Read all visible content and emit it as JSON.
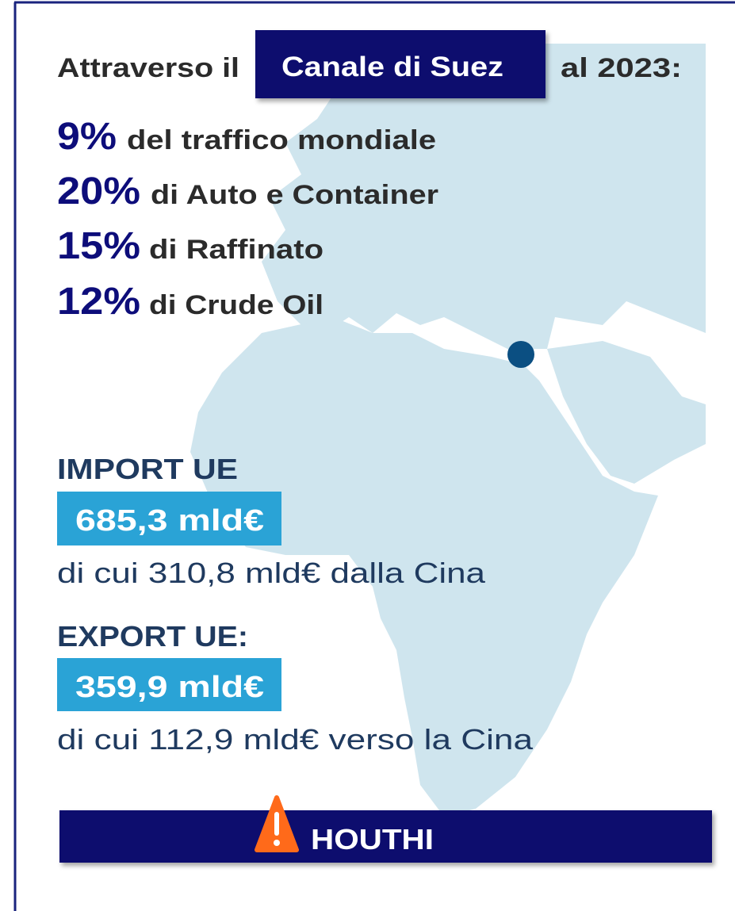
{
  "header": {
    "prefix": "Attraverso il",
    "highlight": "Canale di Suez",
    "suffix": "al 2023:"
  },
  "stats": [
    {
      "value": "9%",
      "label": "del traffico mondiale"
    },
    {
      "value": "20%",
      "label": "di Auto e Container"
    },
    {
      "value": "15%",
      "label": "di Raffinato"
    },
    {
      "value": "12%",
      "label": "di Crude Oil"
    }
  ],
  "import": {
    "title": "IMPORT UE",
    "amount": "685,3 mld€",
    "note": "di cui 310,8 mld€ dalla Cina"
  },
  "export": {
    "title": "EXPORT UE:",
    "amount": "359,9 mld€",
    "note": "di cui 112,9 mld€ verso la Cina"
  },
  "alert": {
    "label": "HOUTHI"
  }
}
